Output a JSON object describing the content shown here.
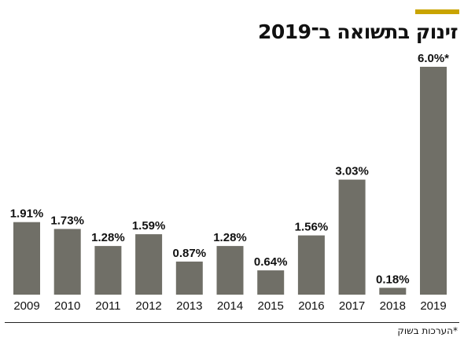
{
  "header": {
    "title": "זינוק בתשואה ב־2019"
  },
  "footnote": "*הערכות בשוק",
  "colors": {
    "accent": "#c9a400",
    "bar": "#706f67",
    "text": "#111111",
    "baseline": "#222222"
  },
  "chart_data": {
    "type": "bar",
    "title": "זינוק בתשואה ב־2019",
    "xlabel": "",
    "ylabel": "",
    "categories": [
      "2009",
      "2010",
      "2011",
      "2012",
      "2013",
      "2014",
      "2015",
      "2016",
      "2017",
      "2018",
      "2019"
    ],
    "values": [
      1.91,
      1.73,
      1.28,
      1.59,
      0.87,
      1.28,
      0.64,
      1.56,
      3.03,
      0.18,
      6.0
    ],
    "value_labels": [
      "1.91%",
      "1.73%",
      "1.28%",
      "1.59%",
      "0.87%",
      "1.28%",
      "0.64%",
      "1.56%",
      "3.03%",
      "0.18%",
      "6.0%*"
    ],
    "ylim": [
      0,
      6.0
    ],
    "grid": false,
    "legend": "none"
  }
}
